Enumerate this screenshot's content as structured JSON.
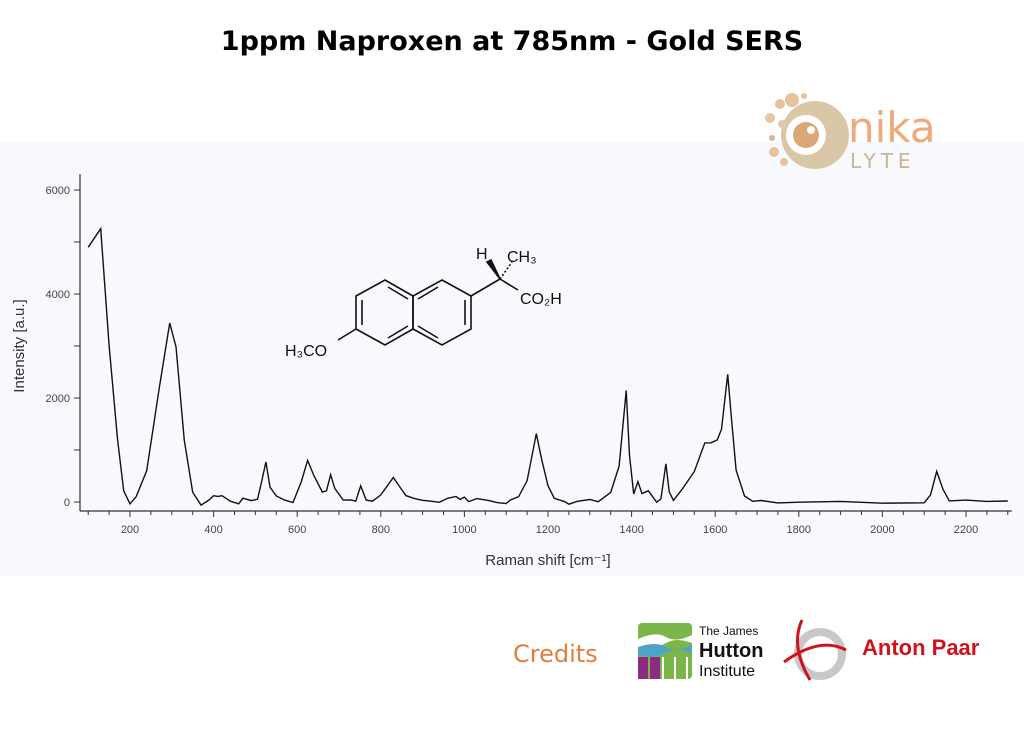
{
  "title": "1ppm Naproxen at 785nm - Gold SERS",
  "chart_data": {
    "type": "line",
    "title": "1ppm Naproxen at 785nm - Gold SERS",
    "xlabel": "Raman shift [cm⁻¹]",
    "ylabel": "Intensity [a.u.]",
    "xlim": [
      100,
      2300
    ],
    "ylim": [
      -200,
      6300
    ],
    "xticks": [
      200,
      400,
      600,
      800,
      1000,
      1200,
      1400,
      1600,
      1800,
      2000,
      2200
    ],
    "yticks": [
      0,
      2000,
      4000,
      6000
    ],
    "grid": false,
    "line_color": "#000000",
    "series": [
      {
        "x": [
          100,
          130,
          150,
          170,
          185,
          200,
          215,
          240,
          270,
          295,
          310,
          330,
          350,
          370,
          390,
          400,
          410,
          420,
          440,
          460,
          470,
          490,
          505,
          515,
          525,
          535,
          550,
          570,
          590,
          610,
          625,
          640,
          660,
          670,
          680,
          690,
          710,
          730,
          740,
          752,
          765,
          780,
          800,
          830,
          845,
          860,
          880,
          900,
          920,
          940,
          960,
          980,
          990,
          1000,
          1010,
          1030,
          1060,
          1080,
          1100,
          1110,
          1130,
          1150,
          1172,
          1185,
          1200,
          1215,
          1240,
          1250,
          1270,
          1300,
          1320,
          1350,
          1370,
          1387,
          1395,
          1405,
          1415,
          1425,
          1440,
          1460,
          1470,
          1482,
          1490,
          1500,
          1520,
          1550,
          1575,
          1590,
          1605,
          1615,
          1630,
          1640,
          1650,
          1670,
          1690,
          1710,
          1750,
          1800,
          1900,
          2000,
          2100,
          2115,
          2130,
          2145,
          2160,
          2200,
          2250,
          2300
        ],
        "y": [
          4900,
          5250,
          3000,
          1200,
          200,
          -50,
          100,
          600,
          2200,
          3450,
          3000,
          1200,
          200,
          -50,
          50,
          120,
          100,
          110,
          0,
          -50,
          60,
          20,
          50,
          400,
          780,
          300,
          130,
          50,
          0,
          400,
          800,
          500,
          180,
          200,
          510,
          250,
          30,
          40,
          20,
          320,
          50,
          30,
          150,
          480,
          300,
          120,
          60,
          20,
          0,
          -20,
          60,
          100,
          50,
          100,
          20,
          80,
          40,
          0,
          -20,
          40,
          100,
          400,
          1300,
          800,
          300,
          60,
          0,
          -40,
          20,
          60,
          20,
          200,
          700,
          2150,
          900,
          150,
          380,
          150,
          200,
          -20,
          50,
          730,
          200,
          40,
          250,
          600,
          1150,
          1150,
          1200,
          1400,
          2450,
          1500,
          600,
          100,
          0,
          20,
          -20,
          0,
          20,
          -10,
          0,
          150,
          600,
          250,
          20,
          30,
          0,
          20
        ]
      }
    ],
    "annotations": {
      "structure_labels": {
        "h": "H",
        "ch3": "CH₃",
        "co2h": "CO₂H",
        "h3co": "H₃CO"
      }
    }
  },
  "logos": {
    "nikalyte": {
      "word1": "nika",
      "word2": "LYTE",
      "color": "#f0a97a"
    },
    "hutton": {
      "line1": "The James",
      "line2": "Hutton",
      "line3": "Institute"
    },
    "antonpaar": {
      "text": "Anton Paar",
      "color": "#d0121b"
    }
  },
  "credits_label": "Credits"
}
